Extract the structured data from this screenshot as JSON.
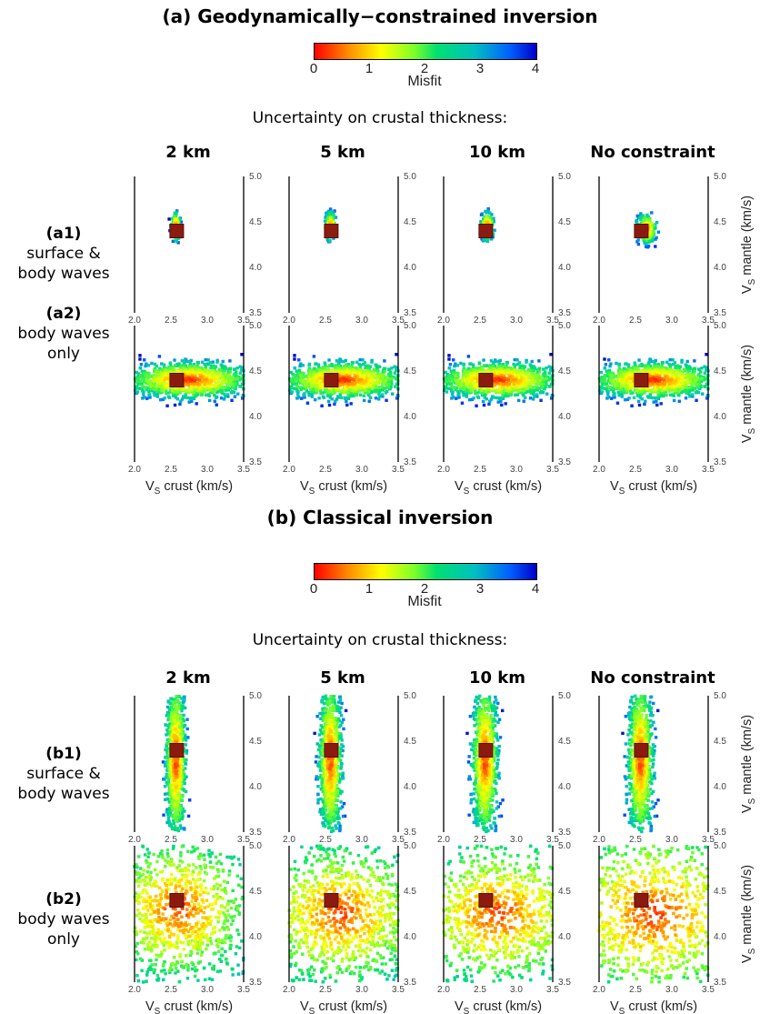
{
  "section_a": {
    "title": "(a) Geodynamically−constrained inversion",
    "subtitle": "Uncertainty on crustal thickness:",
    "colorbar": {
      "label": "Misfit",
      "ticks": [
        "0",
        "1",
        "2",
        "3",
        "4"
      ]
    },
    "columns": [
      "2 km",
      "5 km",
      "10 km",
      "No constraint"
    ],
    "rows": [
      {
        "id": "(a1)",
        "line1": "surface &",
        "line2": "body waves"
      },
      {
        "id": "(a2)",
        "line1": "body waves",
        "line2": "only"
      }
    ]
  },
  "section_b": {
    "title": "(b) Classical inversion",
    "subtitle": "Uncertainty on crustal thickness:",
    "colorbar": {
      "label": "Misfit",
      "ticks": [
        "0",
        "1",
        "2",
        "3",
        "4"
      ]
    },
    "columns": [
      "2 km",
      "5 km",
      "10 km",
      "No constraint"
    ],
    "rows": [
      {
        "id": "(b1)",
        "line1": "surface &",
        "line2": "body waves"
      },
      {
        "id": "(b2)",
        "line1": "body waves",
        "line2": "only"
      }
    ]
  },
  "axes": {
    "xlabel_main": "V",
    "xlabel_sub": "S",
    "xlabel_rest": " crust (km/s)",
    "ylabel_main": "V",
    "ylabel_sub": "S",
    "ylabel_rest": " mantle (km/s)",
    "xticks": [
      "2.0",
      "2.5",
      "3.0",
      "3.5"
    ],
    "yticks": [
      "3.5",
      "4.0",
      "4.5",
      "5.0"
    ]
  },
  "chart_data": {
    "type": "scatter",
    "x_range": [
      2.0,
      3.5
    ],
    "y_range": [
      3.5,
      5.0
    ],
    "misfit_range": [
      0,
      4
    ],
    "colormap": [
      "#ff0000",
      "#ff8a00",
      "#ffff00",
      "#7cff2a",
      "#00e070",
      "#00c0c0",
      "#0060ff",
      "#0000c8"
    ],
    "best_model": {
      "vs_crust": 2.58,
      "vs_mantle": 4.4
    },
    "panels": [
      {
        "id": "a1-2km",
        "grid": [
          40,
          98
        ],
        "cx": 2.57,
        "cy": 4.45,
        "sx": 0.03,
        "sy": 0.08,
        "n": 140
      },
      {
        "id": "a1-5km",
        "grid": [
          210,
          98
        ],
        "cx": 2.57,
        "cy": 4.45,
        "sx": 0.035,
        "sy": 0.08,
        "n": 150
      },
      {
        "id": "a1-10km",
        "grid": [
          380,
          98
        ],
        "cx": 2.6,
        "cy": 4.45,
        "sx": 0.045,
        "sy": 0.08,
        "n": 160
      },
      {
        "id": "a1-none",
        "grid": [
          551,
          98
        ],
        "cx": 2.65,
        "cy": 4.42,
        "sx": 0.07,
        "sy": 0.08,
        "n": 190
      },
      {
        "id": "a2-2km",
        "grid": [
          40,
          262
        ],
        "cx": 2.75,
        "cy": 4.4,
        "sx": 0.45,
        "sy": 0.1,
        "n": 1100
      },
      {
        "id": "a2-5km",
        "grid": [
          210,
          262
        ],
        "cx": 2.75,
        "cy": 4.4,
        "sx": 0.45,
        "sy": 0.1,
        "n": 1100
      },
      {
        "id": "a2-10km",
        "grid": [
          380,
          262
        ],
        "cx": 2.75,
        "cy": 4.4,
        "sx": 0.45,
        "sy": 0.1,
        "n": 1100
      },
      {
        "id": "a2-none",
        "grid": [
          551,
          262
        ],
        "cx": 2.75,
        "cy": 4.4,
        "sx": 0.45,
        "sy": 0.1,
        "n": 1100
      },
      {
        "id": "b1-2km",
        "grid": [
          40,
          669
        ],
        "cx": 2.57,
        "cy": 4.3,
        "sx": 0.07,
        "sy": 0.45,
        "n": 900
      },
      {
        "id": "b1-5km",
        "grid": [
          210,
          669
        ],
        "cx": 2.57,
        "cy": 4.3,
        "sx": 0.08,
        "sy": 0.45,
        "n": 900
      },
      {
        "id": "b1-10km",
        "grid": [
          380,
          669
        ],
        "cx": 2.57,
        "cy": 4.3,
        "sx": 0.09,
        "sy": 0.45,
        "n": 950
      },
      {
        "id": "b1-none",
        "grid": [
          551,
          669
        ],
        "cx": 2.57,
        "cy": 4.3,
        "sx": 0.09,
        "sy": 0.45,
        "n": 950
      },
      {
        "id": "b2-2km",
        "grid": [
          40,
          834
        ],
        "cx": 2.6,
        "cy": 4.3,
        "sx": 0.6,
        "sy": 0.45,
        "n": 1600
      },
      {
        "id": "b2-5km",
        "grid": [
          210,
          834
        ],
        "cx": 2.7,
        "cy": 4.25,
        "sx": 0.7,
        "sy": 0.45,
        "n": 1900
      },
      {
        "id": "b2-10km",
        "grid": [
          380,
          834
        ],
        "cx": 2.75,
        "cy": 4.25,
        "sx": 0.75,
        "sy": 0.45,
        "n": 2100
      },
      {
        "id": "b2-none",
        "grid": [
          551,
          834
        ],
        "cx": 2.75,
        "cy": 4.25,
        "sx": 0.9,
        "sy": 0.55,
        "n": 2400
      }
    ]
  }
}
